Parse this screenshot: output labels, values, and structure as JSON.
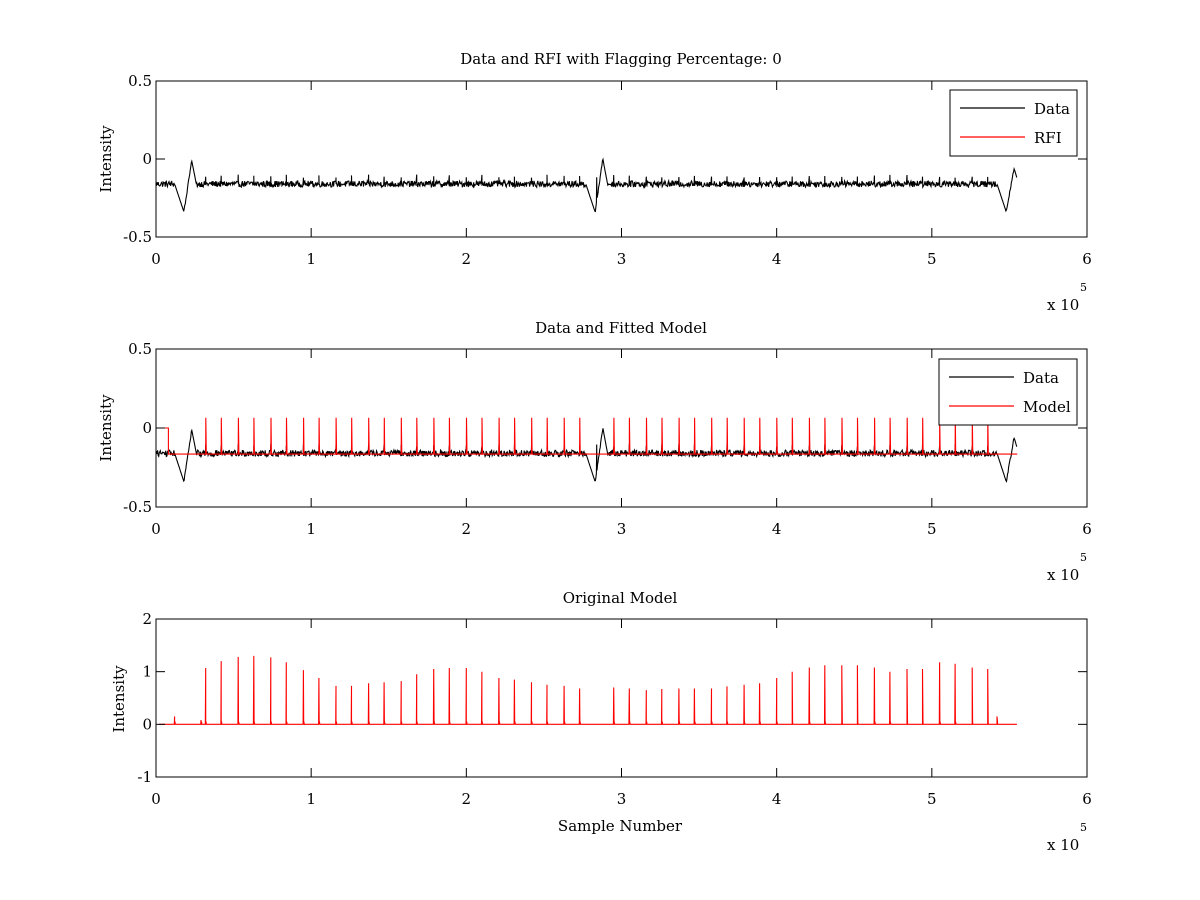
{
  "figure": {
    "background": "#ffffff"
  },
  "chart_data": [
    {
      "type": "line",
      "title": "Data and RFI with Flagging Percentage: 0",
      "xlabel": "",
      "ylabel": "Intensity",
      "xlim": [
        0,
        6
      ],
      "ylim": [
        -0.5,
        0.5
      ],
      "xticks": [
        "0",
        "1",
        "2",
        "3",
        "4",
        "5",
        "6"
      ],
      "yticks": [
        "-0.5",
        "0",
        "0.5"
      ],
      "x_multiplier": {
        "base": "x 10",
        "exponent": "5"
      },
      "grid": false,
      "legend": {
        "placement": "top-right",
        "entries": [
          {
            "label": "Data",
            "color": "#000000"
          },
          {
            "label": "RFI",
            "color": "#ff0000"
          }
        ]
      },
      "series": [
        {
          "name": "Data",
          "color": "#000000",
          "x_end": 5.55,
          "baseline": -0.16,
          "noise_amp": 0.02,
          "spike_height": 0.03,
          "spikes": [
            0.32,
            0.42,
            0.53,
            0.63,
            0.74,
            0.84,
            0.95,
            1.05,
            1.16,
            1.26,
            1.37,
            1.47,
            1.58,
            1.68,
            1.79,
            1.89,
            2.0,
            2.1,
            2.21,
            2.31,
            2.42,
            2.52,
            2.63,
            2.73,
            2.84,
            2.95,
            3.05,
            3.16,
            3.26,
            3.37,
            3.47,
            3.58,
            3.68,
            3.79,
            3.89,
            4.0,
            4.1,
            4.21,
            4.31,
            4.42,
            4.52,
            4.63,
            4.73,
            4.84,
            4.94,
            5.05,
            5.15,
            5.26,
            5.36
          ],
          "dips": [
            {
              "x": 0.18,
              "depth": -0.34,
              "peak": -0.01
            },
            {
              "x": 2.83,
              "depth": -0.34,
              "peak": 0.0
            },
            {
              "x": 5.48,
              "depth": -0.34,
              "peak": -0.06
            }
          ]
        },
        {
          "name": "RFI",
          "color": "#ff0000",
          "values": []
        }
      ]
    },
    {
      "type": "line",
      "title": "Data and Fitted Model",
      "xlabel": "",
      "ylabel": "Intensity",
      "xlim": [
        0,
        6
      ],
      "ylim": [
        -0.5,
        0.5
      ],
      "xticks": [
        "0",
        "1",
        "2",
        "3",
        "4",
        "5",
        "6"
      ],
      "yticks": [
        "-0.5",
        "0",
        "0.5"
      ],
      "x_multiplier": {
        "base": "x 10",
        "exponent": "5"
      },
      "grid": false,
      "legend": {
        "placement": "top-right",
        "entries": [
          {
            "label": "Data",
            "color": "#000000"
          },
          {
            "label": "Model",
            "color": "#ff0000"
          }
        ]
      },
      "series": [
        {
          "name": "Data",
          "color": "#000000",
          "x_end": 5.55,
          "baseline": -0.16,
          "noise_amp": 0.02,
          "spike_height": 0.03,
          "spikes": [
            0.32,
            0.42,
            0.53,
            0.63,
            0.74,
            0.84,
            0.95,
            1.05,
            1.16,
            1.26,
            1.37,
            1.47,
            1.58,
            1.68,
            1.79,
            1.89,
            2.0,
            2.1,
            2.21,
            2.31,
            2.42,
            2.52,
            2.63,
            2.73,
            2.84,
            2.95,
            3.05,
            3.16,
            3.26,
            3.37,
            3.47,
            3.58,
            3.68,
            3.79,
            3.89,
            4.0,
            4.1,
            4.21,
            4.31,
            4.42,
            4.52,
            4.63,
            4.73,
            4.84,
            4.94,
            5.05,
            5.15,
            5.26,
            5.36
          ],
          "dips": [
            {
              "x": 0.18,
              "depth": -0.34,
              "peak": -0.01
            },
            {
              "x": 2.83,
              "depth": -0.34,
              "peak": 0.0
            },
            {
              "x": 5.48,
              "depth": -0.34,
              "peak": -0.06
            }
          ]
        },
        {
          "name": "Model",
          "color": "#ff0000",
          "x_start": 0.08,
          "x_end": 5.55,
          "baseline": -0.165,
          "initial_segment": {
            "x": [
              0.0,
              0.08
            ],
            "y": 0.0
          },
          "spike_height": 0.03,
          "spikes": [
            0.32,
            0.42,
            0.53,
            0.63,
            0.74,
            0.84,
            0.95,
            1.05,
            1.16,
            1.26,
            1.37,
            1.47,
            1.58,
            1.68,
            1.79,
            1.89,
            2.0,
            2.1,
            2.21,
            2.31,
            2.42,
            2.52,
            2.63,
            2.73,
            2.95,
            3.05,
            3.16,
            3.26,
            3.37,
            3.47,
            3.58,
            3.68,
            3.79,
            3.89,
            4.0,
            4.1,
            4.21,
            4.31,
            4.42,
            4.52,
            4.63,
            4.73,
            4.84,
            4.94,
            5.05,
            5.15,
            5.26,
            5.36
          ]
        }
      ]
    },
    {
      "type": "line",
      "title": "Original Model",
      "xlabel": "Sample Number",
      "ylabel": "Intensity",
      "xlim": [
        0,
        6
      ],
      "ylim": [
        -1,
        2
      ],
      "xticks": [
        "0",
        "1",
        "2",
        "3",
        "4",
        "5",
        "6"
      ],
      "yticks": [
        "-1",
        "0",
        "1",
        "2"
      ],
      "x_multiplier": {
        "base": "x 10",
        "exponent": "5"
      },
      "grid": false,
      "series": [
        {
          "name": "Original Model",
          "color": "#ff0000",
          "x_end": 5.55,
          "baseline": 0,
          "peaks": [
            {
              "x": 0.12,
              "y": 0.15
            },
            {
              "x": 0.29,
              "y": 0.08
            },
            {
              "x": 0.32,
              "y": 1.07
            },
            {
              "x": 0.42,
              "y": 1.2
            },
            {
              "x": 0.53,
              "y": 1.28
            },
            {
              "x": 0.63,
              "y": 1.3
            },
            {
              "x": 0.74,
              "y": 1.27
            },
            {
              "x": 0.84,
              "y": 1.18
            },
            {
              "x": 0.95,
              "y": 1.03
            },
            {
              "x": 1.05,
              "y": 0.88
            },
            {
              "x": 1.16,
              "y": 0.73
            },
            {
              "x": 1.26,
              "y": 0.73
            },
            {
              "x": 1.37,
              "y": 0.78
            },
            {
              "x": 1.47,
              "y": 0.8
            },
            {
              "x": 1.58,
              "y": 0.82
            },
            {
              "x": 1.68,
              "y": 0.95
            },
            {
              "x": 1.79,
              "y": 1.05
            },
            {
              "x": 1.89,
              "y": 1.07
            },
            {
              "x": 2.0,
              "y": 1.07
            },
            {
              "x": 2.1,
              "y": 1.0
            },
            {
              "x": 2.21,
              "y": 0.88
            },
            {
              "x": 2.31,
              "y": 0.85
            },
            {
              "x": 2.42,
              "y": 0.8
            },
            {
              "x": 2.52,
              "y": 0.75
            },
            {
              "x": 2.63,
              "y": 0.73
            },
            {
              "x": 2.73,
              "y": 0.68
            },
            {
              "x": 2.95,
              "y": 0.7
            },
            {
              "x": 3.05,
              "y": 0.68
            },
            {
              "x": 3.16,
              "y": 0.65
            },
            {
              "x": 3.26,
              "y": 0.67
            },
            {
              "x": 3.37,
              "y": 0.68
            },
            {
              "x": 3.47,
              "y": 0.68
            },
            {
              "x": 3.58,
              "y": 0.68
            },
            {
              "x": 3.68,
              "y": 0.72
            },
            {
              "x": 3.79,
              "y": 0.75
            },
            {
              "x": 3.89,
              "y": 0.78
            },
            {
              "x": 4.0,
              "y": 0.88
            },
            {
              "x": 4.1,
              "y": 1.0
            },
            {
              "x": 4.21,
              "y": 1.08
            },
            {
              "x": 4.31,
              "y": 1.12
            },
            {
              "x": 4.42,
              "y": 1.12
            },
            {
              "x": 4.52,
              "y": 1.12
            },
            {
              "x": 4.63,
              "y": 1.08
            },
            {
              "x": 4.73,
              "y": 1.0
            },
            {
              "x": 4.84,
              "y": 1.05
            },
            {
              "x": 4.94,
              "y": 1.05
            },
            {
              "x": 5.05,
              "y": 1.18
            },
            {
              "x": 5.15,
              "y": 1.15
            },
            {
              "x": 5.26,
              "y": 1.08
            },
            {
              "x": 5.36,
              "y": 1.05
            },
            {
              "x": 5.42,
              "y": 0.15
            }
          ]
        }
      ]
    }
  ]
}
